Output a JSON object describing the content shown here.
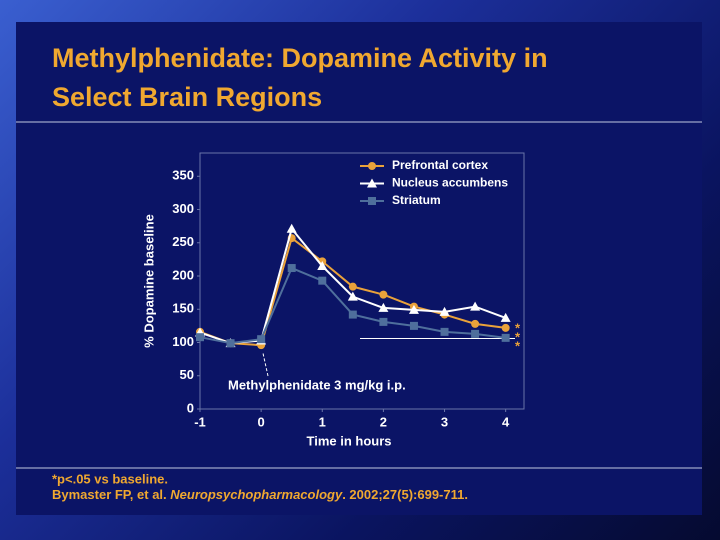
{
  "chart_data": {
    "type": "line",
    "title_lines": [
      "Methylphenidate: Dopamine Activity in",
      "Select Brain Regions"
    ],
    "xlabel": "Time in hours",
    "ylabel": "% Dopamine baseline",
    "x": [
      -1,
      -0.5,
      0,
      0.5,
      1,
      1.5,
      2,
      2.5,
      3,
      3.5,
      4
    ],
    "series": [
      {
        "name": "Prefrontal cortex",
        "color": "#eaa23a",
        "marker": "circle",
        "values": [
          116,
          99,
          96,
          257,
          222,
          184,
          172,
          154,
          142,
          128,
          122
        ]
      },
      {
        "name": "Nucleus accumbens",
        "color": "#ffffff",
        "marker": "triangle",
        "values": [
          115,
          99,
          103,
          271,
          215,
          169,
          152,
          149,
          146,
          154,
          137
        ]
      },
      {
        "name": "Striatum",
        "color": "#4f6f9c",
        "marker": "square",
        "values": [
          108,
          99,
          105,
          212,
          193,
          142,
          131,
          125,
          116,
          113,
          107
        ]
      }
    ],
    "xlim": [
      -1,
      4.3
    ],
    "xticks": [
      -1,
      0,
      1,
      2,
      3,
      4
    ],
    "ylim": [
      0,
      385
    ],
    "yticks": [
      0,
      50,
      100,
      150,
      200,
      250,
      300,
      350
    ],
    "legend": "upper right",
    "annotation": "Methylphenidate 3 mg/kg i.p.",
    "significance_marks": [
      "*",
      "*",
      "*"
    ]
  },
  "footer": {
    "note": "*p<.05 vs baseline.",
    "citation": [
      "Bymaster FP, et al. ",
      "Neuropsychopharmacology",
      ". 2002;27(5):699-711."
    ]
  }
}
